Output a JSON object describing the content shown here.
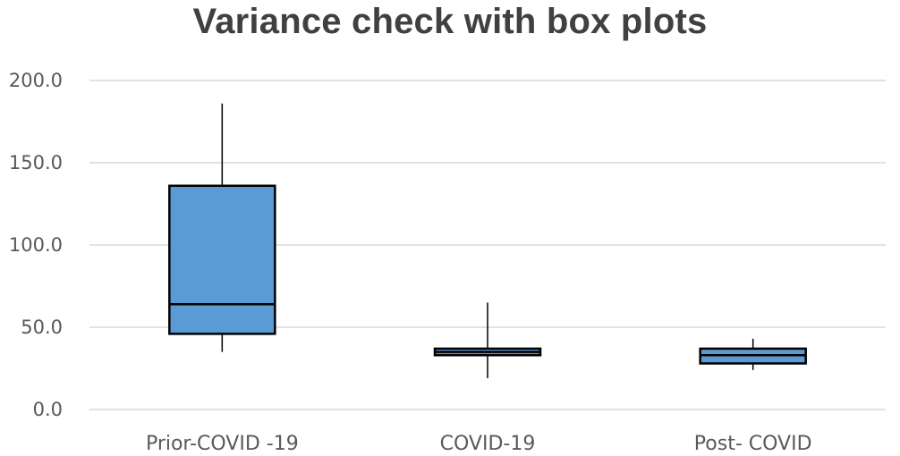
{
  "chart_data": {
    "type": "box",
    "title": "Variance check with box plots",
    "xlabel": "",
    "ylabel": "",
    "ylim": [
      0,
      200
    ],
    "yticks": [
      0,
      50,
      100,
      150,
      200
    ],
    "ytick_labels": [
      "0.0",
      "50.0",
      "100.0",
      "150.0",
      "200.0"
    ],
    "grid": true,
    "legend": "none",
    "categories": [
      "Prior-COVID -19",
      "COVID-19",
      "Post- COVID"
    ],
    "boxes": [
      {
        "category": "Prior-COVID -19",
        "min": 35,
        "q1": 46,
        "median": 64,
        "q3": 136,
        "max": 186
      },
      {
        "category": "COVID-19",
        "min": 19,
        "q1": 33,
        "median": 35,
        "q3": 37,
        "max": 65
      },
      {
        "category": "Post- COVID",
        "min": 24,
        "q1": 28,
        "median": 33,
        "q3": 37,
        "max": 43
      }
    ],
    "colors": {
      "box_fill": "#5b9bd5",
      "box_stroke": "#000000",
      "grid": "#d9d9d9",
      "text": "#595959",
      "title": "#404040"
    }
  }
}
